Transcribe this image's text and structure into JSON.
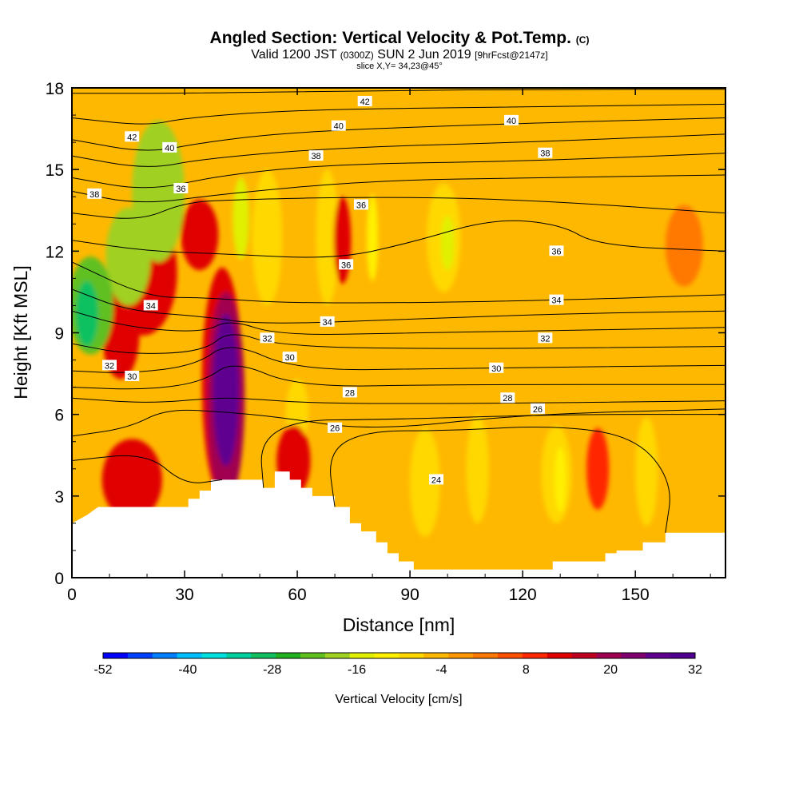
{
  "chart_data": {
    "type": "heatmap",
    "title": "Angled Section: Vertical Velocity & Pot.Temp.",
    "title_mark": "(C)",
    "subtitle_parts": [
      "Valid 1200 JST",
      "(0300Z)",
      "SUN 2 Jun 2019",
      "[9hrFcst@2147z]"
    ],
    "slice_text": "slice X,Y= 34,23@45°",
    "xlabel": "Distance [nm]",
    "ylabel": "Height [Kft MSL]",
    "xlim": [
      0,
      174
    ],
    "ylim": [
      0,
      18
    ],
    "x_ticks": [
      0,
      30,
      60,
      90,
      120,
      150
    ],
    "y_ticks": [
      0,
      3,
      6,
      9,
      12,
      15,
      18
    ],
    "colorbar": {
      "title": "Vertical Velocity [cm/s]",
      "ticks": [
        -52,
        -40,
        -28,
        -16,
        -4,
        8,
        20,
        32
      ],
      "colors": [
        "#0000ff",
        "#0040ff",
        "#0080ff",
        "#00c0ff",
        "#00e0e0",
        "#00d0a0",
        "#10c060",
        "#20b020",
        "#60c020",
        "#a0d020",
        "#e0f000",
        "#fff000",
        "#ffd800",
        "#ffb800",
        "#ff9800",
        "#ff7800",
        "#ff5000",
        "#ff2800",
        "#e00000",
        "#c00020",
        "#a00050",
        "#800070",
        "#600090",
        "#500090"
      ]
    },
    "base_color": "#ffb800",
    "terrain_kft": [
      [
        0,
        2.0
      ],
      [
        4,
        2.3
      ],
      [
        7,
        2.6
      ],
      [
        31,
        2.6
      ],
      [
        31,
        2.9
      ],
      [
        34,
        2.9
      ],
      [
        34,
        3.2
      ],
      [
        37,
        3.2
      ],
      [
        37,
        3.6
      ],
      [
        51,
        3.6
      ],
      [
        51,
        3.3
      ],
      [
        54,
        3.3
      ],
      [
        54,
        3.9
      ],
      [
        58,
        3.9
      ],
      [
        58,
        3.6
      ],
      [
        61,
        3.6
      ],
      [
        61,
        3.3
      ],
      [
        64,
        3.3
      ],
      [
        64,
        3.0
      ],
      [
        70,
        3.0
      ],
      [
        70,
        2.6
      ],
      [
        74,
        2.6
      ],
      [
        74,
        2.0
      ],
      [
        77,
        2.0
      ],
      [
        77,
        1.7
      ],
      [
        81,
        1.7
      ],
      [
        81,
        1.3
      ],
      [
        84,
        1.3
      ],
      [
        84,
        0.9
      ],
      [
        87,
        0.9
      ],
      [
        87,
        0.6
      ],
      [
        91,
        0.6
      ],
      [
        91,
        0.3
      ],
      [
        128,
        0.3
      ],
      [
        128,
        0.6
      ],
      [
        142,
        0.6
      ],
      [
        142,
        0.9
      ],
      [
        145,
        0.9
      ],
      [
        145,
        1.0
      ],
      [
        152,
        1.0
      ],
      [
        152,
        1.3
      ],
      [
        158,
        1.3
      ],
      [
        158,
        1.65
      ],
      [
        174,
        1.65
      ]
    ],
    "vv_features": [
      {
        "x": 41,
        "y": 6.9,
        "rx": 3.5,
        "ry": 2.8,
        "value": 28
      },
      {
        "x": 41,
        "y": 6.6,
        "rx": 5,
        "ry": 3.9,
        "value": 18
      },
      {
        "x": 40,
        "y": 7.2,
        "rx": 5.4,
        "ry": 4.2,
        "value": 12
      },
      {
        "x": 59,
        "y": 4.3,
        "rx": 4.5,
        "ry": 1.3,
        "value": 14
      },
      {
        "x": 16,
        "y": 3.6,
        "rx": 8,
        "ry": 1.5,
        "value": 13
      },
      {
        "x": 13,
        "y": 9.0,
        "rx": 5,
        "ry": 1.7,
        "value": 13
      },
      {
        "x": 19,
        "y": 11.2,
        "rx": 9,
        "ry": 2.3,
        "value": 11
      },
      {
        "x": 34,
        "y": 12.6,
        "rx": 5,
        "ry": 1.3,
        "value": 12
      },
      {
        "x": 72,
        "y": 12.4,
        "rx": 2.3,
        "ry": 1.6,
        "value": 12
      },
      {
        "x": 140,
        "y": 4.0,
        "rx": 3,
        "ry": 1.5,
        "value": 9
      },
      {
        "x": 163,
        "y": 12.2,
        "rx": 5,
        "ry": 1.5,
        "value": 3
      },
      {
        "x": 52,
        "y": 12.5,
        "rx": 4,
        "ry": 2.5,
        "value": -8
      },
      {
        "x": 68,
        "y": 12.5,
        "rx": 3,
        "ry": 2.5,
        "value": -8
      },
      {
        "x": 99,
        "y": 12.5,
        "rx": 4.5,
        "ry": 2.0,
        "value": -8
      },
      {
        "x": 108,
        "y": 4.0,
        "rx": 3,
        "ry": 2.0,
        "value": -8
      },
      {
        "x": 94,
        "y": 3.5,
        "rx": 4,
        "ry": 2.0,
        "value": -8
      },
      {
        "x": 129,
        "y": 3.8,
        "rx": 4,
        "ry": 1.8,
        "value": -8
      },
      {
        "x": 153,
        "y": 3.9,
        "rx": 3,
        "ry": 2.0,
        "value": -8
      },
      {
        "x": 60,
        "y": 6.1,
        "rx": 3,
        "ry": 1.2,
        "value": -8
      },
      {
        "x": 100,
        "y": 12.3,
        "rx": 1.8,
        "ry": 1.0,
        "value": -14
      },
      {
        "x": 45,
        "y": 13.2,
        "rx": 2.2,
        "ry": 1.5,
        "value": -14
      },
      {
        "x": 80,
        "y": 12.5,
        "rx": 1.5,
        "ry": 1.6,
        "value": -12
      },
      {
        "x": 130,
        "y": 3.6,
        "rx": 1.5,
        "ry": 1.2,
        "value": -12
      },
      {
        "x": 23,
        "y": 14.2,
        "rx": 7,
        "ry": 2.6,
        "value": -18
      },
      {
        "x": 15,
        "y": 11.8,
        "rx": 6,
        "ry": 1.8,
        "value": -20
      },
      {
        "x": 5,
        "y": 10.0,
        "rx": 6,
        "ry": 1.8,
        "value": -24
      },
      {
        "x": 4,
        "y": 9.7,
        "rx": 3,
        "ry": 1.2,
        "value": -29
      }
    ],
    "theta_contours": [
      {
        "label": "42",
        "points": [
          [
            0,
            17.8
          ],
          [
            30,
            17.8
          ],
          [
            80,
            17.9
          ],
          [
            130,
            17.95
          ],
          [
            174,
            17.95
          ]
        ]
      },
      {
        "label": "42",
        "points": [
          [
            0,
            16.9
          ],
          [
            20,
            16.6
          ],
          [
            30,
            16.9
          ],
          [
            60,
            17.2
          ],
          [
            120,
            17.3
          ],
          [
            174,
            17.4
          ]
        ]
      },
      {
        "label": "40",
        "points": [
          [
            0,
            16.1
          ],
          [
            20,
            15.6
          ],
          [
            35,
            16.0
          ],
          [
            60,
            16.4
          ],
          [
            120,
            16.7
          ],
          [
            174,
            16.9
          ]
        ]
      },
      {
        "label": "40",
        "points": [
          [
            0,
            15.5
          ],
          [
            20,
            15.0
          ],
          [
            35,
            15.4
          ],
          [
            70,
            15.8
          ],
          [
            120,
            16.0
          ],
          [
            174,
            16.3
          ]
        ]
      },
      {
        "label": "38",
        "points": [
          [
            0,
            14.7
          ],
          [
            20,
            14.2
          ],
          [
            40,
            14.8
          ],
          [
            70,
            15.2
          ],
          [
            120,
            15.3
          ],
          [
            174,
            15.6
          ]
        ]
      },
      {
        "label": "38",
        "points": [
          [
            0,
            14.2
          ],
          [
            18,
            13.7
          ],
          [
            40,
            14.1
          ],
          [
            80,
            14.6
          ],
          [
            125,
            14.7
          ],
          [
            174,
            14.8
          ]
        ]
      },
      {
        "label": "36",
        "points": [
          [
            0,
            13.4
          ],
          [
            18,
            13.1
          ],
          [
            30,
            13.8
          ],
          [
            45,
            13.9
          ],
          [
            80,
            14.0
          ],
          [
            120,
            13.9
          ],
          [
            174,
            13.4
          ]
        ]
      },
      {
        "label": "36",
        "points": [
          [
            0,
            12.4
          ],
          [
            20,
            12.0
          ],
          [
            40,
            11.9
          ],
          [
            70,
            11.7
          ],
          [
            90,
            12.3
          ],
          [
            112,
            13.2
          ],
          [
            130,
            13.0
          ],
          [
            140,
            12.2
          ],
          [
            174,
            12.0
          ]
        ]
      },
      {
        "label": "34",
        "points": [
          [
            0,
            11.6
          ],
          [
            20,
            10.3
          ],
          [
            35,
            10.3
          ],
          [
            55,
            10.1
          ],
          [
            90,
            10.1
          ],
          [
            130,
            10.2
          ],
          [
            174,
            10.4
          ]
        ]
      },
      {
        "label": "34",
        "points": [
          [
            0,
            10.6
          ],
          [
            15,
            9.8
          ],
          [
            35,
            9.6
          ],
          [
            50,
            9.3
          ],
          [
            90,
            9.5
          ],
          [
            130,
            9.7
          ],
          [
            174,
            9.8
          ]
        ]
      },
      {
        "label": "32",
        "points": [
          [
            0,
            9.8
          ],
          [
            15,
            9.2
          ],
          [
            35,
            9.0
          ],
          [
            42,
            9.5
          ],
          [
            55,
            8.9
          ],
          [
            90,
            9.0
          ],
          [
            140,
            9.1
          ],
          [
            174,
            9.2
          ]
        ]
      },
      {
        "label": "32",
        "points": [
          [
            0,
            8.6
          ],
          [
            15,
            8.2
          ],
          [
            35,
            8.3
          ],
          [
            42,
            9.1
          ],
          [
            55,
            8.5
          ],
          [
            100,
            8.4
          ],
          [
            174,
            8.5
          ]
        ]
      },
      {
        "label": "30",
        "points": [
          [
            0,
            7.6
          ],
          [
            15,
            7.5
          ],
          [
            33,
            7.8
          ],
          [
            42,
            8.7
          ],
          [
            60,
            7.6
          ],
          [
            100,
            7.7
          ],
          [
            174,
            7.8
          ]
        ]
      },
      {
        "label": "30",
        "points": [
          [
            0,
            7.0
          ],
          [
            20,
            6.9
          ],
          [
            35,
            7.2
          ],
          [
            43,
            8.0
          ],
          [
            60,
            7.0
          ],
          [
            100,
            7.1
          ],
          [
            174,
            7.1
          ]
        ]
      },
      {
        "label": "28",
        "points": [
          [
            0,
            6.6
          ],
          [
            20,
            6.4
          ],
          [
            38,
            6.6
          ],
          [
            45,
            6.6
          ],
          [
            65,
            6.4
          ],
          [
            110,
            6.4
          ],
          [
            174,
            6.5
          ]
        ]
      },
      {
        "label": "26",
        "points": [
          [
            0,
            5.2
          ],
          [
            15,
            5.5
          ],
          [
            25,
            6.2
          ],
          [
            40,
            6.1
          ],
          [
            55,
            5.9
          ],
          [
            80,
            5.4
          ],
          [
            120,
            6.0
          ],
          [
            174,
            6.2
          ]
        ]
      },
      {
        "label": "24",
        "points": [
          [
            0,
            4.3
          ],
          [
            20,
            4.6
          ],
          [
            30,
            3.4
          ],
          [
            40,
            3.6
          ]
        ]
      },
      {
        "label": "24",
        "points": [
          [
            51,
            3.3
          ],
          [
            50,
            5.0
          ],
          [
            60,
            5.8
          ],
          [
            80,
            5.8
          ],
          [
            130,
            6.0
          ],
          [
            174,
            6.0
          ]
        ]
      },
      {
        "label": "24",
        "points": [
          [
            70,
            2.6
          ],
          [
            68,
            4.6
          ],
          [
            78,
            5.4
          ],
          [
            100,
            5.4
          ],
          [
            128,
            5.6
          ],
          [
            150,
            5.2
          ],
          [
            160,
            3.5
          ],
          [
            158,
            1.65
          ]
        ]
      }
    ],
    "contour_labels": [
      {
        "text": "42",
        "x": 78,
        "y": 17.5
      },
      {
        "text": "42",
        "x": 16,
        "y": 16.2
      },
      {
        "text": "40",
        "x": 26,
        "y": 15.8
      },
      {
        "text": "40",
        "x": 71,
        "y": 16.6
      },
      {
        "text": "40",
        "x": 117,
        "y": 16.8
      },
      {
        "text": "38",
        "x": 6,
        "y": 14.1
      },
      {
        "text": "38",
        "x": 65,
        "y": 15.5
      },
      {
        "text": "38",
        "x": 126,
        "y": 15.6
      },
      {
        "text": "36",
        "x": 29,
        "y": 14.3
      },
      {
        "text": "36",
        "x": 77,
        "y": 13.7
      },
      {
        "text": "36",
        "x": 73,
        "y": 11.5
      },
      {
        "text": "36",
        "x": 129,
        "y": 12.0
      },
      {
        "text": "34",
        "x": 21,
        "y": 10.0
      },
      {
        "text": "34",
        "x": 68,
        "y": 9.4
      },
      {
        "text": "34",
        "x": 129,
        "y": 10.2
      },
      {
        "text": "32",
        "x": 52,
        "y": 8.8
      },
      {
        "text": "32",
        "x": 126,
        "y": 8.8
      },
      {
        "text": "32",
        "x": 10,
        "y": 7.8
      },
      {
        "text": "30",
        "x": 16,
        "y": 7.4
      },
      {
        "text": "30",
        "x": 58,
        "y": 8.1
      },
      {
        "text": "30",
        "x": 113,
        "y": 7.7
      },
      {
        "text": "28",
        "x": 74,
        "y": 6.8
      },
      {
        "text": "28",
        "x": 116,
        "y": 6.6
      },
      {
        "text": "26",
        "x": 124,
        "y": 6.2
      },
      {
        "text": "26",
        "x": 70,
        "y": 5.5
      },
      {
        "text": "24",
        "x": 97,
        "y": 3.6
      }
    ]
  }
}
